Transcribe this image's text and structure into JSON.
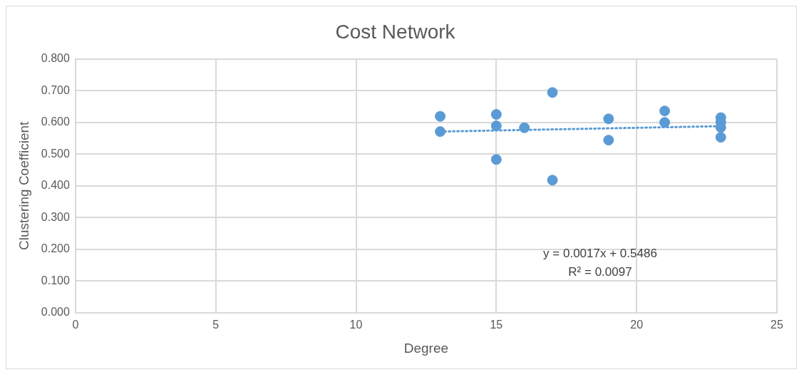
{
  "chart_data": {
    "type": "scatter",
    "title": "Cost Network",
    "xlabel": "Degree",
    "ylabel": "Clustering Coefficient",
    "series": [
      {
        "type": "scatter",
        "color": "#5b9bd5",
        "marker": "circle",
        "x": [
          13,
          13,
          15,
          15,
          15,
          16,
          17,
          17,
          19,
          19,
          21,
          21,
          23,
          23,
          23,
          23
        ],
        "values": [
          0.619,
          0.571,
          0.625,
          0.589,
          0.483,
          0.583,
          0.694,
          0.418,
          0.611,
          0.544,
          0.636,
          0.6,
          0.615,
          0.6,
          0.584,
          0.553
        ]
      },
      {
        "type": "line",
        "color": "#5b9bd5",
        "line_style": "dotted",
        "marker": "none",
        "x": [
          13,
          23
        ],
        "values": [
          0.571,
          0.588
        ]
      }
    ],
    "xlim": [
      0,
      25
    ],
    "xticks": [
      0,
      5,
      10,
      15,
      20,
      25
    ],
    "ylim": [
      0,
      0.8
    ],
    "yticks": [
      {
        "value": 0,
        "label": "0.000"
      },
      {
        "value": 0.1,
        "label": "0.100"
      },
      {
        "value": 0.2,
        "label": "0.200"
      },
      {
        "value": 0.3,
        "label": "0.300"
      },
      {
        "value": 0.4,
        "label": "0.400"
      },
      {
        "value": 0.5,
        "label": "0.500"
      },
      {
        "value": 0.6,
        "label": "0.600"
      },
      {
        "value": 0.7,
        "label": "0.700"
      },
      {
        "value": 0.8,
        "label": "0.800"
      }
    ],
    "grid": true,
    "legend": false,
    "annotations": [
      "y = 0.0017x + 0.5486",
      "R² = 0.0097"
    ]
  }
}
